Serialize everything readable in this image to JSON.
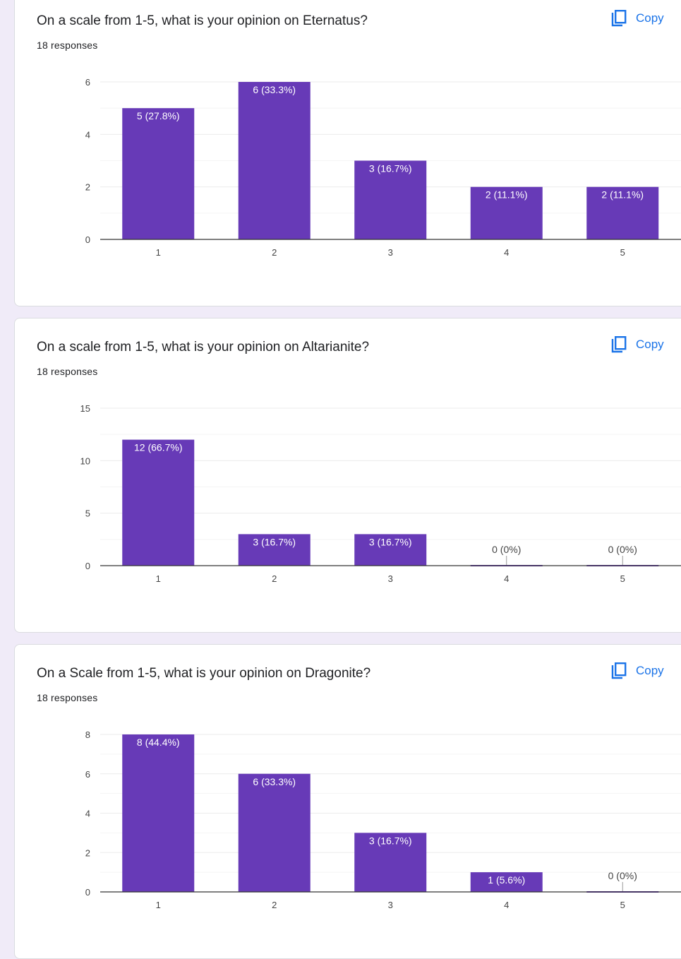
{
  "colors": {
    "page_background": "#f0ebf8",
    "card_background": "#ffffff",
    "bar": "#673ab7",
    "copy_accent": "#1a73e8",
    "gridline": "#ebebeb",
    "baseline": "#333333"
  },
  "copy_label": "Copy",
  "copy_icon": "copy-icon",
  "questions": [
    {
      "title": "On a scale from 1-5, what is your opinion on Eternatus?",
      "responses": "18 responses",
      "chart_data": {
        "type": "bar",
        "categories": [
          "1",
          "2",
          "3",
          "4",
          "5"
        ],
        "values": [
          5,
          6,
          3,
          2,
          2
        ],
        "data_labels": [
          "5 (27.8%)",
          "6 (33.3%)",
          "3 (16.7%)",
          "2 (11.1%)",
          "2 (11.1%)"
        ],
        "yticks": [
          0,
          2,
          4,
          6
        ],
        "ylim": [
          0,
          6
        ],
        "minor_gridlines": [
          1,
          3,
          5
        ],
        "title": "",
        "xlabel": "",
        "ylabel": "",
        "grid": true,
        "legend": "none"
      }
    },
    {
      "title": "On a scale from 1-5, what is your opinion on Altarianite?",
      "responses": "18 responses",
      "chart_data": {
        "type": "bar",
        "categories": [
          "1",
          "2",
          "3",
          "4",
          "5"
        ],
        "values": [
          12,
          3,
          3,
          0,
          0
        ],
        "data_labels": [
          "12 (66.7%)",
          "3 (16.7%)",
          "3 (16.7%)",
          "0 (0%)",
          "0 (0%)"
        ],
        "yticks": [
          0,
          5,
          10,
          15
        ],
        "ylim": [
          0,
          15
        ],
        "minor_gridlines": [
          2.5,
          7.5,
          12.5
        ],
        "title": "",
        "xlabel": "",
        "ylabel": "",
        "grid": true,
        "legend": "none"
      }
    },
    {
      "title": "On a Scale from 1-5, what is your opinion on Dragonite?",
      "responses": "18 responses",
      "chart_data": {
        "type": "bar",
        "categories": [
          "1",
          "2",
          "3",
          "4",
          "5"
        ],
        "values": [
          8,
          6,
          3,
          1,
          0
        ],
        "data_labels": [
          "8 (44.4%)",
          "6 (33.3%)",
          "3 (16.7%)",
          "1 (5.6%)",
          "0 (0%)"
        ],
        "yticks": [
          0,
          2,
          4,
          6,
          8
        ],
        "ylim": [
          0,
          8
        ],
        "minor_gridlines": [
          1,
          3,
          5,
          7
        ],
        "title": "",
        "xlabel": "",
        "ylabel": "",
        "grid": true,
        "legend": "none"
      }
    }
  ]
}
